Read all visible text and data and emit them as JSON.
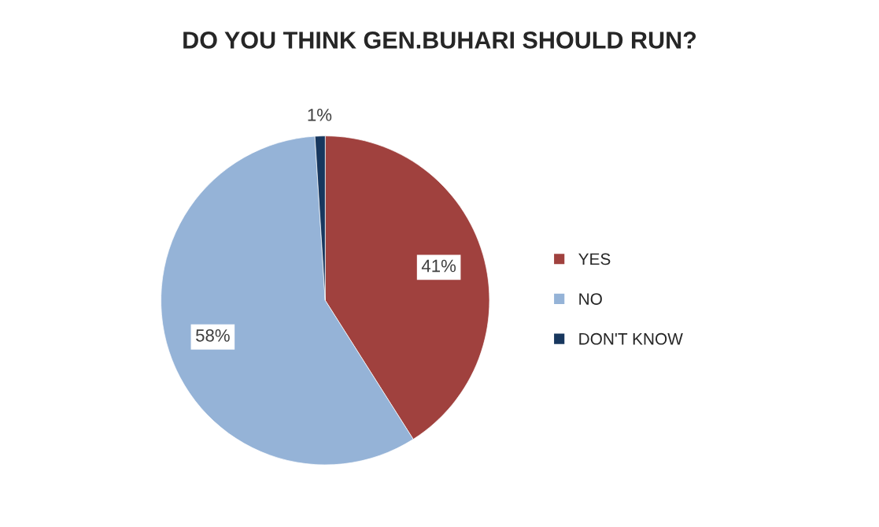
{
  "chart_data": {
    "type": "pie",
    "title": "DO YOU THINK GEN.BUHARI SHOULD RUN?",
    "categories": [
      "YES",
      "NO",
      "DON'T KNOW"
    ],
    "values": [
      41,
      58,
      1
    ],
    "colors": [
      "#a0413e",
      "#95b3d7",
      "#17375e"
    ],
    "value_labels": [
      "41%",
      "58%",
      "1%"
    ],
    "legend": "right"
  }
}
